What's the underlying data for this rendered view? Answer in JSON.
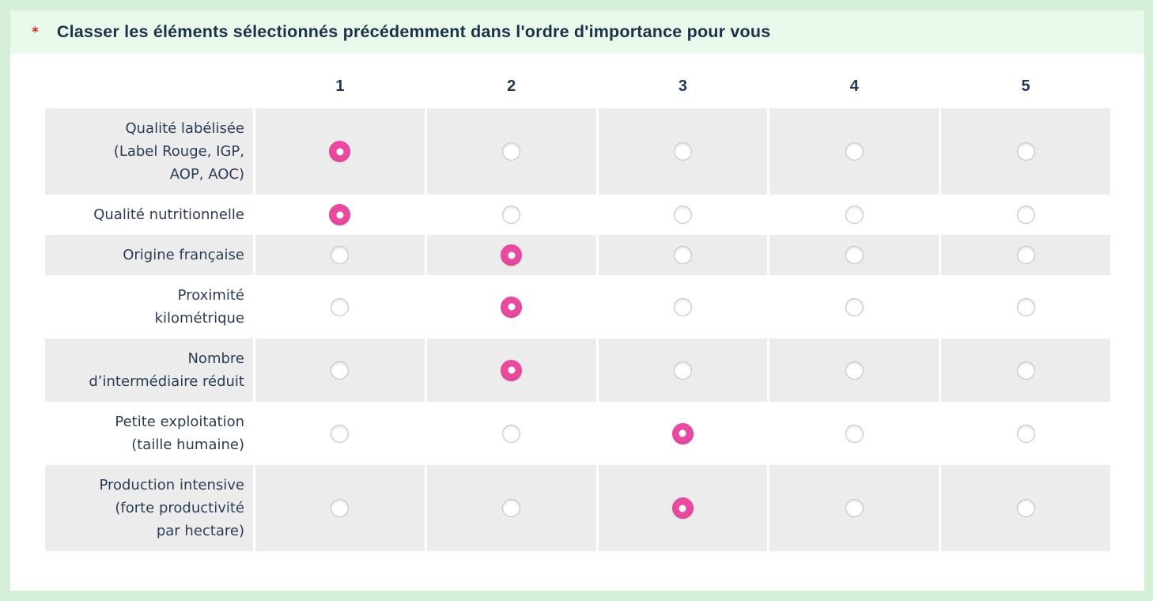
{
  "question": {
    "required_marker": "*",
    "title": "Classer les éléments sélectionnés précédemment dans l'ordre d'importance pour vous"
  },
  "matrix": {
    "columns": [
      "1",
      "2",
      "3",
      "4",
      "5"
    ],
    "rows": [
      {
        "label": "Qualité labélisée\n(Label Rouge, IGP,\nAOP, AOC)",
        "selected_column": 1
      },
      {
        "label": "Qualité nutritionnelle",
        "selected_column": 1
      },
      {
        "label": "Origine française",
        "selected_column": 2
      },
      {
        "label": "Proximité\nkilométrique",
        "selected_column": 2
      },
      {
        "label": "Nombre\nd’intermédiaire réduit",
        "selected_column": 2
      },
      {
        "label": "Petite exploitation\n(taille humaine)",
        "selected_column": 3
      },
      {
        "label": "Production intensive\n(forte productivité\npar hectare)",
        "selected_column": 3
      }
    ]
  },
  "colors": {
    "page_background": "#d5efd7",
    "question_band": "#e9f9ec",
    "card_background": "#ffffff",
    "row_shaded": "#ececec",
    "text_primary": "#2b3c55",
    "title_color": "#1d3147",
    "required": "#e42421",
    "radio_selected": "#e84a9f",
    "radio_selected_dot": "#ffffff",
    "radio_border": "#c2c2c2"
  }
}
